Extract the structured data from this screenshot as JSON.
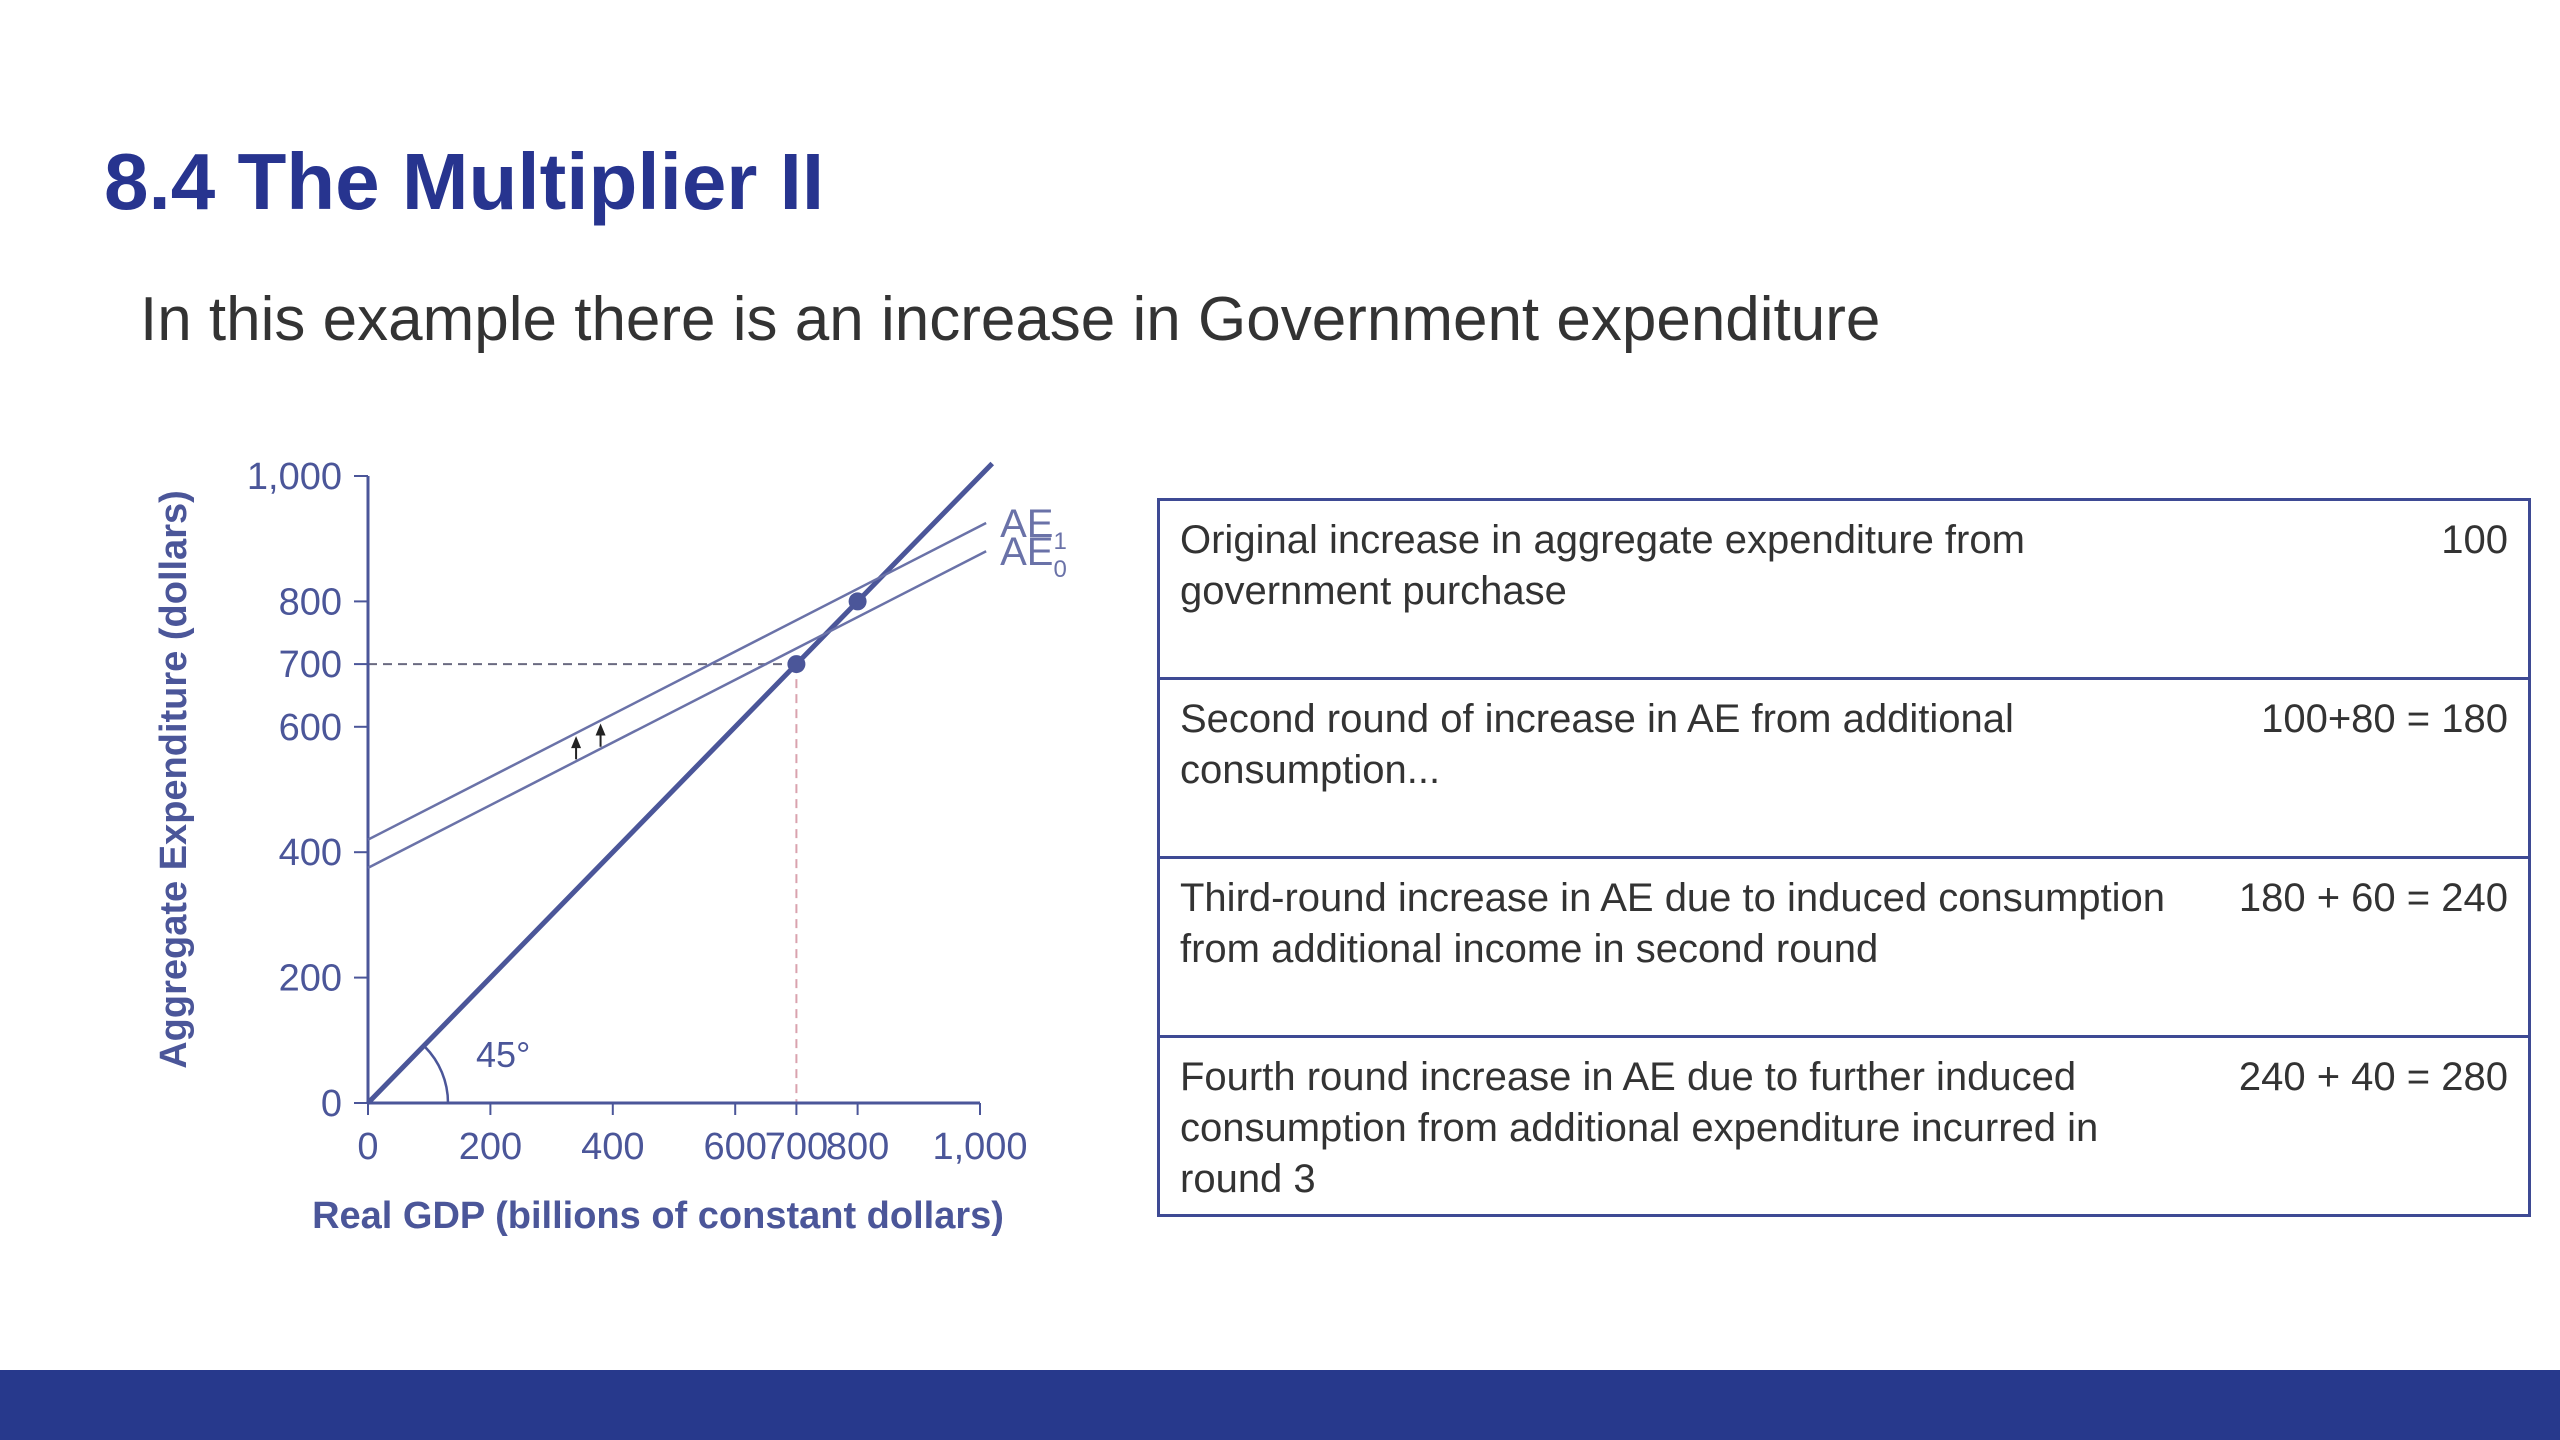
{
  "slide": {
    "title": "8.4 The Multiplier II",
    "subtitle": "In this example there is an increase in Government expenditure"
  },
  "chart_data": {
    "type": "line",
    "xlabel": "Real GDP (billions of constant dollars)",
    "ylabel": "Aggregate Expenditure (dollars)",
    "xlim": [
      0,
      1000
    ],
    "ylim": [
      0,
      1000
    ],
    "x_ticks": [
      0,
      200,
      400,
      600,
      700,
      800,
      1000
    ],
    "x_tick_labels": [
      "0",
      "200",
      "400",
      "600",
      "700",
      "800",
      "1,000"
    ],
    "y_ticks": [
      0,
      200,
      400,
      600,
      700,
      800,
      1000
    ],
    "y_tick_labels": [
      "0",
      "200",
      "400",
      "600",
      "700",
      "800",
      "1,000"
    ],
    "grid": false,
    "series": [
      {
        "name": "",
        "points": [
          [
            0,
            0
          ],
          [
            1020,
            1020
          ]
        ],
        "color": "#4b5699"
      },
      {
        "name": "AE1",
        "label_main": "AE",
        "label_sub": "1",
        "points": [
          [
            0,
            420
          ],
          [
            1010,
            925
          ]
        ],
        "color": "#6a72a8"
      },
      {
        "name": "AE0",
        "label_main": "AE",
        "label_sub": "0",
        "points": [
          [
            0,
            375
          ],
          [
            1010,
            880
          ]
        ],
        "color": "#6a72a8"
      }
    ],
    "equilibria": [
      [
        700,
        700
      ],
      [
        800,
        800
      ]
    ],
    "reference_lines": {
      "h_y": 700,
      "v_x": 700
    },
    "angle_label": "45°",
    "arrows_x": [
      340,
      380
    ]
  },
  "table": {
    "rows": [
      {
        "description": "Original increase in aggregate expenditure from government purchase",
        "value": "100"
      },
      {
        "description": "Second round of increase in AE from additional consumption...",
        "value": "100+80 = 180"
      },
      {
        "description": "Third-round increase in AE due to induced consumption from additional income in second round",
        "value": "180 + 60 = 240"
      },
      {
        "description": "Fourth round increase in AE due to further induced consumption from additional expenditure incurred in round 3",
        "value": "240 + 40 = 280"
      }
    ]
  },
  "colors": {
    "title": "#27348f",
    "footer": "#27398c",
    "axis": "#4b5699",
    "table_border": "#3e4a94",
    "ref_vertical": "#d9a2ae",
    "ref_horizontal": "#6a6a80"
  }
}
